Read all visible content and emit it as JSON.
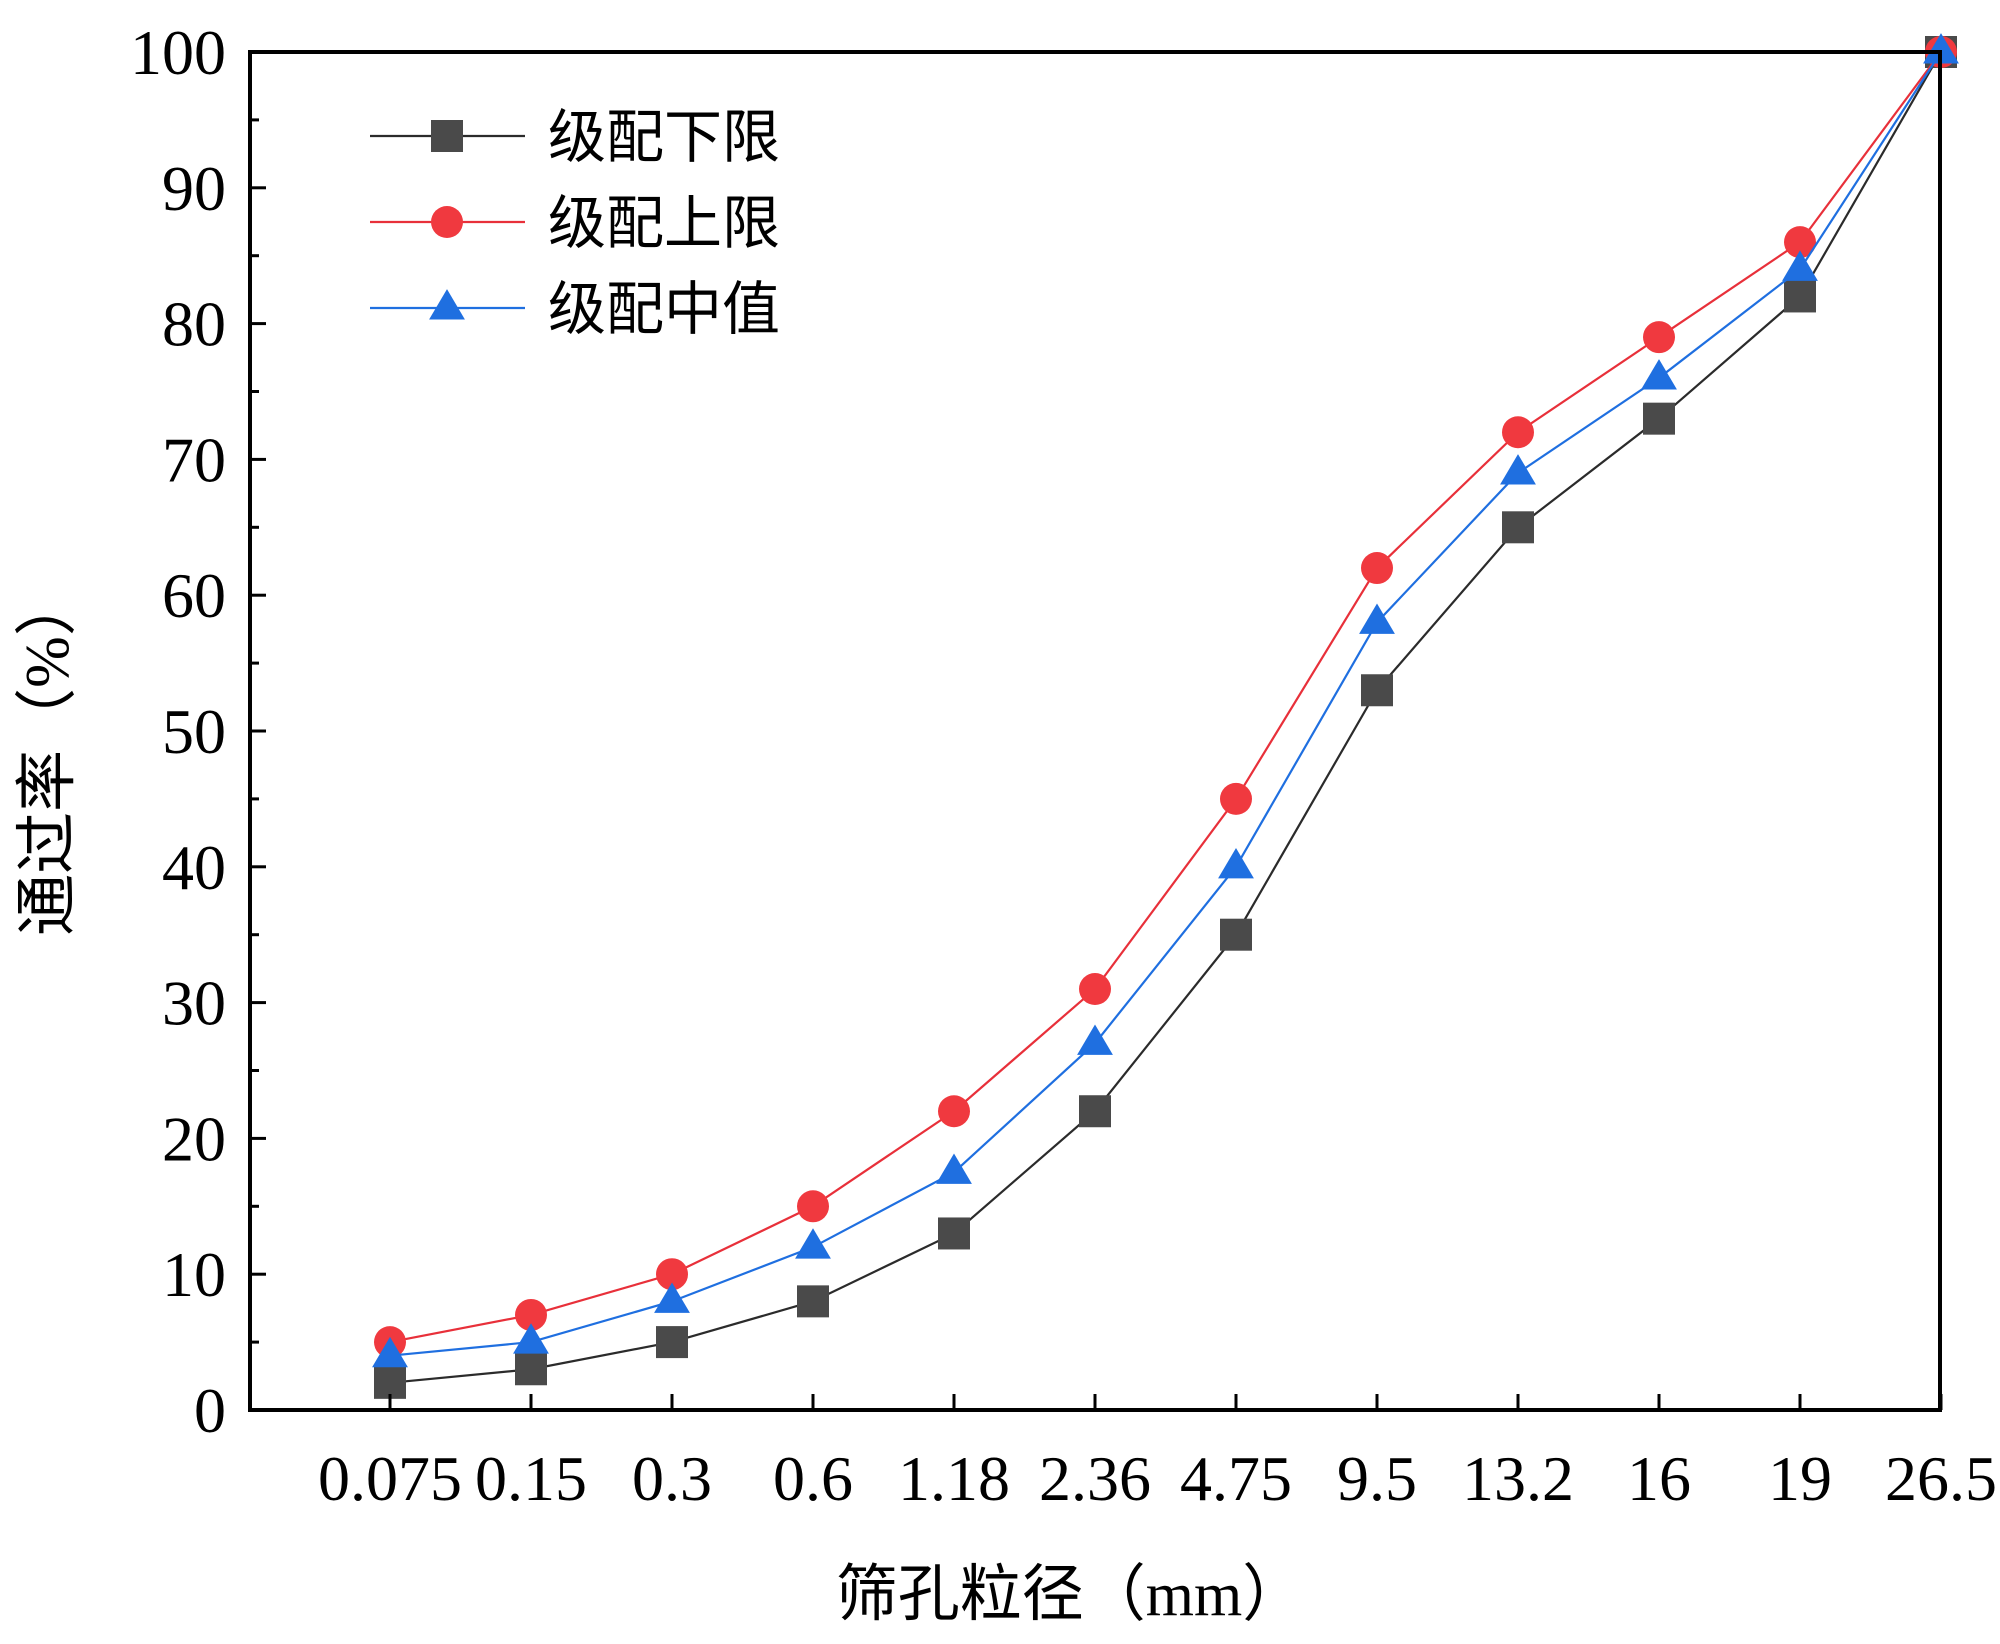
{
  "chart_data": {
    "type": "line",
    "title": "",
    "xlabel": "筛孔粒径（mm）",
    "ylabel": "通过率（%）",
    "categories": [
      "0.075",
      "0.15",
      "0.3",
      "0.6",
      "1.18",
      "2.36",
      "4.75",
      "9.5",
      "13.2",
      "16",
      "19",
      "26.5"
    ],
    "ylim": [
      0,
      100
    ],
    "yticks": [
      "0",
      "10",
      "20",
      "30",
      "40",
      "50",
      "60",
      "70",
      "80",
      "90",
      "100"
    ],
    "grid": false,
    "legend_position": "top-left",
    "series": [
      {
        "name": "级配下限",
        "marker": "square",
        "color": "#4a4a4a",
        "line_color": "#2b2b2b",
        "values": [
          2,
          3,
          5,
          8,
          13,
          22,
          35,
          53,
          65,
          73,
          82,
          100
        ]
      },
      {
        "name": "级配上限",
        "marker": "circle",
        "color": "#f0393f",
        "line_color": "#e8303a",
        "values": [
          5,
          7,
          10,
          15,
          22,
          31,
          45,
          62,
          72,
          79,
          86,
          100
        ]
      },
      {
        "name": "级配中值",
        "marker": "triangle",
        "color": "#1f6fe0",
        "line_color": "#1f6fe0",
        "values": [
          4,
          5,
          8,
          12,
          17.5,
          27,
          40,
          58,
          69,
          76,
          84,
          100
        ]
      }
    ]
  }
}
